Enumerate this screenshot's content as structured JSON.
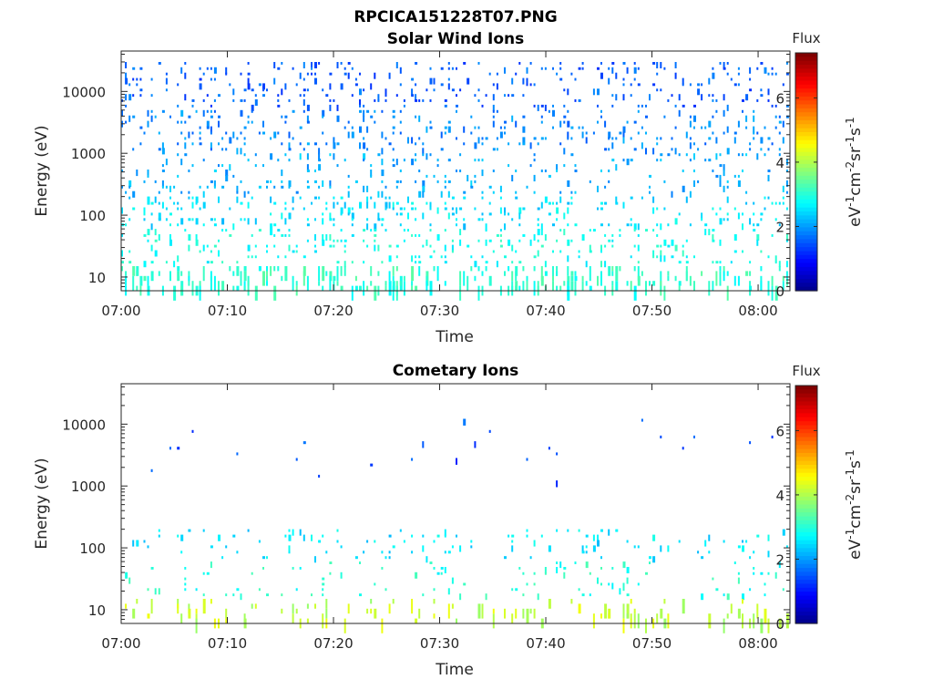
{
  "figure": {
    "title": "RPCICA151228T07.PNG"
  },
  "chart_data": [
    {
      "type": "heatmap",
      "title": "Solar Wind Ions",
      "xlabel": "Time",
      "ylabel": "Energy (eV)",
      "x_tick_labels": [
        "07:00",
        "07:10",
        "07:20",
        "07:30",
        "07:40",
        "07:50",
        "08:00"
      ],
      "x_range_minutes": [
        0,
        63
      ],
      "y_scale": "log",
      "y_range": [
        6,
        45000
      ],
      "y_tick_labels": [
        "10",
        "100",
        "1000",
        "10000"
      ],
      "colorbar": {
        "title": "Flux",
        "label": "eV-1cm-2sr-1s-1",
        "range": [
          0,
          7.4
        ],
        "tick_labels": [
          "0",
          "2",
          "4",
          "6"
        ],
        "colormap": "jet"
      },
      "dominant_flux_by_energy": [
        {
          "energy_band": "5000-30000 eV",
          "flux": 1.6
        },
        {
          "energy_band": "1000-5000 eV",
          "flux": 1.9
        },
        {
          "energy_band": "200-1000 eV",
          "flux": 2.2
        },
        {
          "energy_band": "60-200 eV",
          "flux": 2.6
        },
        {
          "energy_band": "15-60 eV",
          "flux": 2.9
        },
        {
          "energy_band": "6-15 eV",
          "flux": 3.1
        }
      ]
    },
    {
      "type": "heatmap",
      "title": "Cometary Ions",
      "xlabel": "Time",
      "ylabel": "Energy (eV)",
      "x_tick_labels": [
        "07:00",
        "07:10",
        "07:20",
        "07:30",
        "07:40",
        "07:50",
        "08:00"
      ],
      "x_range_minutes": [
        0,
        63
      ],
      "y_scale": "log",
      "y_range": [
        6,
        45000
      ],
      "y_tick_labels": [
        "10",
        "100",
        "1000",
        "10000"
      ],
      "colorbar": {
        "title": "Flux",
        "label": "eV-1cm-2sr-1s-1",
        "range": [
          0,
          7.4
        ],
        "tick_labels": [
          "0",
          "2",
          "4",
          "6"
        ],
        "colormap": "jet"
      },
      "dominant_flux_by_energy": [
        {
          "energy_band": "1000-15000 eV",
          "flux": 1.5
        },
        {
          "energy_band": "60-200 eV",
          "flux": 2.6
        },
        {
          "energy_band": "15-60 eV",
          "flux": 3.0
        },
        {
          "energy_band": "6-15 eV",
          "flux": 4.2
        }
      ]
    }
  ]
}
